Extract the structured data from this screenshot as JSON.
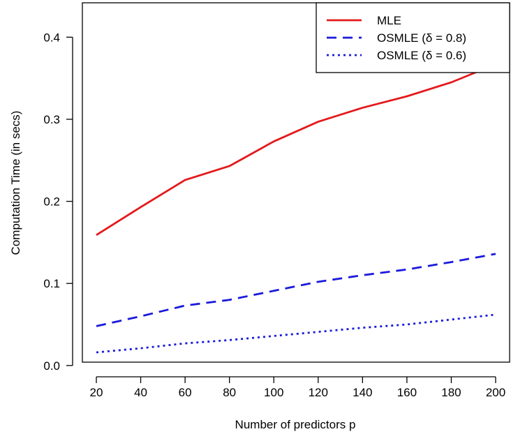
{
  "chart_data": {
    "type": "line",
    "title": "",
    "xlabel": "Number of predictors p",
    "ylabel": "Computation Time (in secs)",
    "x": [
      20,
      40,
      60,
      80,
      100,
      120,
      140,
      160,
      180,
      200
    ],
    "x_ticks": [
      "20",
      "40",
      "60",
      "80",
      "100",
      "120",
      "140",
      "160",
      "180",
      "200"
    ],
    "y_ticks": [
      "0.0",
      "0.1",
      "0.2",
      "0.3",
      "0.4"
    ],
    "xlim": [
      20,
      200
    ],
    "ylim": [
      0.016,
      0.43
    ],
    "grid": false,
    "legend_position": "top-right",
    "series": [
      {
        "name": "MLE",
        "color": "#e31a1c",
        "style": "solid",
        "values": [
          0.159,
          0.193,
          0.226,
          0.243,
          0.273,
          0.297,
          0.314,
          0.328,
          0.345,
          0.367
        ]
      },
      {
        "name": "OSMLE (δ = 0.8)",
        "color": "#1a1adb",
        "style": "dashed",
        "values": [
          0.048,
          0.06,
          0.073,
          0.08,
          0.091,
          0.102,
          0.11,
          0.117,
          0.126,
          0.136
        ]
      },
      {
        "name": "OSMLE (δ = 0.6)",
        "color": "#1a1adb",
        "style": "dotted",
        "values": [
          0.016,
          0.021,
          0.027,
          0.031,
          0.036,
          0.041,
          0.046,
          0.05,
          0.056,
          0.062
        ]
      }
    ]
  }
}
